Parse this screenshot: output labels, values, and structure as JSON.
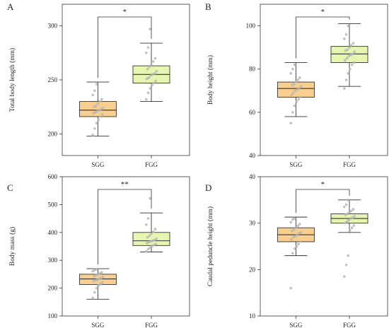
{
  "figure": {
    "colors": {
      "sgg_fill": "#f8cf8e",
      "fgg_fill": "#e8f5b0",
      "box_stroke": "#333333",
      "points": "#b5b5b5",
      "axis": "#333333"
    }
  },
  "chart_data": [
    {
      "panel_label": "A",
      "type": "box",
      "ylabel": "Total body length (mm)",
      "categories": [
        "SGG",
        "FGG"
      ],
      "ylim": [
        180,
        320
      ],
      "yticks": [
        200,
        250,
        300
      ],
      "significance": "*",
      "boxes": [
        {
          "category": "SGG",
          "min": 198,
          "q1": 216,
          "median": 222,
          "q3": 230,
          "max": 248
        },
        {
          "category": "FGG",
          "min": 230,
          "q1": 247,
          "median": 255,
          "q3": 263,
          "max": 284
        }
      ],
      "points": [
        {
          "category": "SGG",
          "values": [
            199,
            205,
            210,
            213,
            216,
            218,
            219,
            220,
            221,
            222,
            223,
            224,
            225,
            226,
            228,
            230,
            232,
            236,
            240,
            246
          ]
        },
        {
          "category": "FGG",
          "values": [
            232,
            238,
            242,
            245,
            247,
            249,
            251,
            252,
            254,
            255,
            256,
            258,
            260,
            262,
            264,
            267,
            270,
            275,
            280,
            297
          ]
        }
      ]
    },
    {
      "panel_label": "B",
      "type": "box",
      "ylabel": "Body height (mm)",
      "categories": [
        "SGG",
        "FGG"
      ],
      "ylim": [
        40,
        110
      ],
      "yticks": [
        40,
        60,
        80,
        100
      ],
      "significance": "*",
      "boxes": [
        {
          "category": "SGG",
          "min": 58,
          "q1": 67,
          "median": 71,
          "q3": 74,
          "max": 83
        },
        {
          "category": "FGG",
          "min": 72,
          "q1": 83,
          "median": 87,
          "q3": 90.5,
          "max": 101
        }
      ],
      "points": [
        {
          "category": "SGG",
          "values": [
            55,
            60,
            63,
            65,
            66,
            67,
            68,
            69,
            70,
            70.5,
            71,
            72,
            72.5,
            73,
            74,
            75,
            76,
            78,
            80,
            82
          ]
        },
        {
          "category": "FGG",
          "values": [
            71,
            75,
            78,
            80,
            82,
            83,
            84,
            85,
            86,
            86.5,
            87,
            88,
            88.5,
            89,
            90,
            91,
            92,
            94,
            96,
            100
          ]
        }
      ]
    },
    {
      "panel_label": "C",
      "type": "box",
      "ylabel": "Body mass (g)",
      "categories": [
        "SGG",
        "FGG"
      ],
      "ylim": [
        100,
        600
      ],
      "yticks": [
        100,
        200,
        300,
        400,
        500,
        600
      ],
      "significance": "**",
      "boxes": [
        {
          "category": "SGG",
          "min": 160,
          "q1": 213,
          "median": 233,
          "q3": 250,
          "max": 270
        },
        {
          "category": "FGG",
          "min": 330,
          "q1": 353,
          "median": 370,
          "q3": 400,
          "max": 470
        }
      ],
      "points": [
        {
          "category": "SGG",
          "values": [
            165,
            185,
            200,
            210,
            215,
            220,
            225,
            228,
            230,
            233,
            236,
            240,
            243,
            246,
            250,
            253,
            257,
            261,
            265,
            268
          ]
        },
        {
          "category": "FGG",
          "values": [
            332,
            340,
            345,
            350,
            355,
            358,
            362,
            365,
            368,
            370,
            373,
            377,
            382,
            388,
            395,
            402,
            412,
            428,
            450,
            522
          ]
        }
      ]
    },
    {
      "panel_label": "D",
      "type": "box",
      "ylabel": "Caudal peduncle height (mm)",
      "categories": [
        "SGG",
        "FGG"
      ],
      "ylim": [
        10,
        40
      ],
      "yticks": [
        10,
        20,
        30,
        40
      ],
      "significance": "*",
      "boxes": [
        {
          "category": "SGG",
          "min": 23,
          "q1": 26,
          "median": 27.5,
          "q3": 29,
          "max": 31.3
        },
        {
          "category": "FGG",
          "min": 28,
          "q1": 30,
          "median": 31,
          "q3": 32,
          "max": 35
        }
      ],
      "points": [
        {
          "category": "SGG",
          "values": [
            16,
            23.5,
            24.5,
            25,
            25.5,
            26,
            26.5,
            27,
            27.2,
            27.5,
            27.8,
            28,
            28.3,
            28.6,
            29,
            29.4,
            29.8,
            30.2,
            30.8,
            31
          ]
        },
        {
          "category": "FGG",
          "values": [
            18.5,
            21,
            23,
            28.5,
            29,
            29.5,
            30,
            30.3,
            30.6,
            31,
            31.2,
            31.5,
            31.8,
            32,
            32.3,
            32.6,
            33,
            33.5,
            34,
            35
          ]
        }
      ]
    }
  ]
}
